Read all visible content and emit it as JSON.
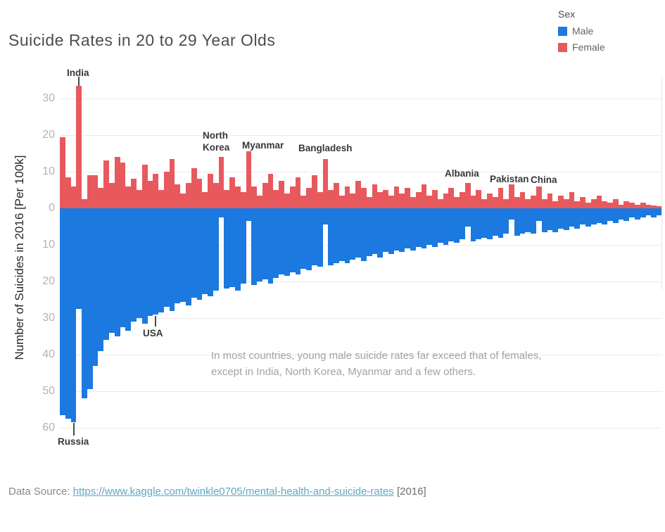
{
  "title": "Suicide Rates in 20 to 29 Year Olds",
  "legend": {
    "title": "Sex",
    "items": [
      {
        "label": "Male",
        "color": "#1B79DF"
      },
      {
        "label": "Female",
        "color": "#E8595E"
      }
    ]
  },
  "y_axis": {
    "label": "Number of Suicides in 2016 [Per 100k]",
    "female_ticks": [
      30,
      20,
      10,
      0
    ],
    "male_ticks": [
      10,
      20,
      30,
      40,
      50,
      60
    ]
  },
  "note": "In most countries, young male suicide rates far exceed that of females, except in India, North Korea, Myanmar and a few others.",
  "footer": {
    "prefix": "Data Source: ",
    "link": "https://www.kaggle.com/twinkle0705/mental-health-and-suicide-rates",
    "suffix": " [2016]"
  },
  "chart_data": {
    "type": "bar",
    "subtype": "diverging-vertical",
    "title": "Suicide Rates in 20 to 29 Year Olds",
    "ylabel": "Number of Suicides in 2016 [Per 100k]",
    "xlabel": "",
    "unit": "suicides per 100k, 2016",
    "legend_position": "top-right",
    "female_axis_max": 35,
    "male_axis_max": 60,
    "grid": true,
    "colors": {
      "male": "#1B79DF",
      "female": "#E8595E"
    },
    "annotations": [
      {
        "label": "India"
      },
      {
        "label": "Russia"
      },
      {
        "label": "USA"
      },
      {
        "label": "North\nKorea"
      },
      {
        "label": "Myanmar"
      },
      {
        "label": "Bangladesh"
      },
      {
        "label": "Albania"
      },
      {
        "label": "Pakistan"
      },
      {
        "label": "China"
      }
    ],
    "bar_format": [
      "female_per_100k",
      "male_per_100k",
      "country_if_labeled"
    ],
    "bars": [
      [
        19.5,
        56.5
      ],
      [
        8.5,
        57.5
      ],
      [
        6,
        58.5,
        "Russia"
      ],
      [
        33.5,
        27.5,
        "India"
      ],
      [
        2.5,
        52
      ],
      [
        9,
        49.5
      ],
      [
        9,
        43
      ],
      [
        5.5,
        39
      ],
      [
        13,
        36
      ],
      [
        7,
        34
      ],
      [
        14,
        35
      ],
      [
        12.5,
        32.5
      ],
      [
        6,
        33.5
      ],
      [
        8,
        31
      ],
      [
        5,
        30
      ],
      [
        12,
        31.5
      ],
      [
        7.5,
        29.5
      ],
      [
        9.5,
        29,
        "USA"
      ],
      [
        5,
        28.5
      ],
      [
        10,
        27
      ],
      [
        13.5,
        28
      ],
      [
        6.5,
        26
      ],
      [
        4,
        25.5
      ],
      [
        7,
        26.5
      ],
      [
        11,
        24.5
      ],
      [
        8,
        25
      ],
      [
        4.5,
        23.5
      ],
      [
        9.5,
        24
      ],
      [
        7,
        22.5
      ],
      [
        14,
        2.5,
        "North Korea"
      ],
      [
        5,
        22
      ],
      [
        8.5,
        21.5
      ],
      [
        6,
        22.5
      ],
      [
        4.5,
        20.5
      ],
      [
        15.5,
        3.5,
        "Myanmar"
      ],
      [
        6,
        21
      ],
      [
        3.5,
        20
      ],
      [
        7,
        19.5
      ],
      [
        9.5,
        20.5
      ],
      [
        5,
        19
      ],
      [
        7.5,
        18
      ],
      [
        4,
        18.5
      ],
      [
        6,
        17.5
      ],
      [
        8.5,
        18
      ],
      [
        3.5,
        16.5
      ],
      [
        5.5,
        17
      ],
      [
        9,
        15.5
      ],
      [
        4.5,
        16
      ],
      [
        13.5,
        4.5,
        "Bangladesh"
      ],
      [
        5,
        15.5
      ],
      [
        7,
        15
      ],
      [
        3.5,
        14.5
      ],
      [
        6,
        15
      ],
      [
        4,
        14
      ],
      [
        7.5,
        13.5
      ],
      [
        5.5,
        14.5
      ],
      [
        3,
        13
      ],
      [
        6.5,
        12.5
      ],
      [
        4.5,
        13.5
      ],
      [
        5,
        12
      ],
      [
        3.5,
        12.5
      ],
      [
        6,
        11.5
      ],
      [
        4,
        12
      ],
      [
        5.5,
        11
      ],
      [
        3,
        11.5
      ],
      [
        4.5,
        10.5
      ],
      [
        6.5,
        11
      ],
      [
        3.5,
        10
      ],
      [
        5,
        10.5
      ],
      [
        2.5,
        9.5
      ],
      [
        4,
        10
      ],
      [
        5.5,
        9
      ],
      [
        3,
        9.5
      ],
      [
        4.5,
        8.5
      ],
      [
        7,
        5,
        "Albania"
      ],
      [
        3.5,
        9
      ],
      [
        5,
        8.5
      ],
      [
        2.5,
        8
      ],
      [
        4,
        8.5
      ],
      [
        3,
        7.5
      ],
      [
        5.5,
        8
      ],
      [
        2.5,
        7
      ],
      [
        6.5,
        3,
        "Pakistan"
      ],
      [
        3,
        7.5
      ],
      [
        4.5,
        7
      ],
      [
        2.5,
        6.5
      ],
      [
        3.5,
        7
      ],
      [
        6,
        3.5,
        "China"
      ],
      [
        2.5,
        6.5
      ],
      [
        4,
        6
      ],
      [
        2,
        6.5
      ],
      [
        3.5,
        5.5
      ],
      [
        2.5,
        6
      ],
      [
        4.5,
        5
      ],
      [
        2,
        5.5
      ],
      [
        3,
        4.5
      ],
      [
        1.5,
        5
      ],
      [
        2.5,
        4.5
      ],
      [
        3.5,
        4
      ],
      [
        2,
        4.5
      ],
      [
        1.5,
        3.5
      ],
      [
        2.5,
        4
      ],
      [
        1,
        3
      ],
      [
        2,
        3.5
      ],
      [
        1.5,
        2.5
      ],
      [
        1,
        3
      ],
      [
        1.5,
        2.5
      ],
      [
        1,
        2
      ],
      [
        0.8,
        2.5
      ],
      [
        0.5,
        2
      ]
    ]
  }
}
